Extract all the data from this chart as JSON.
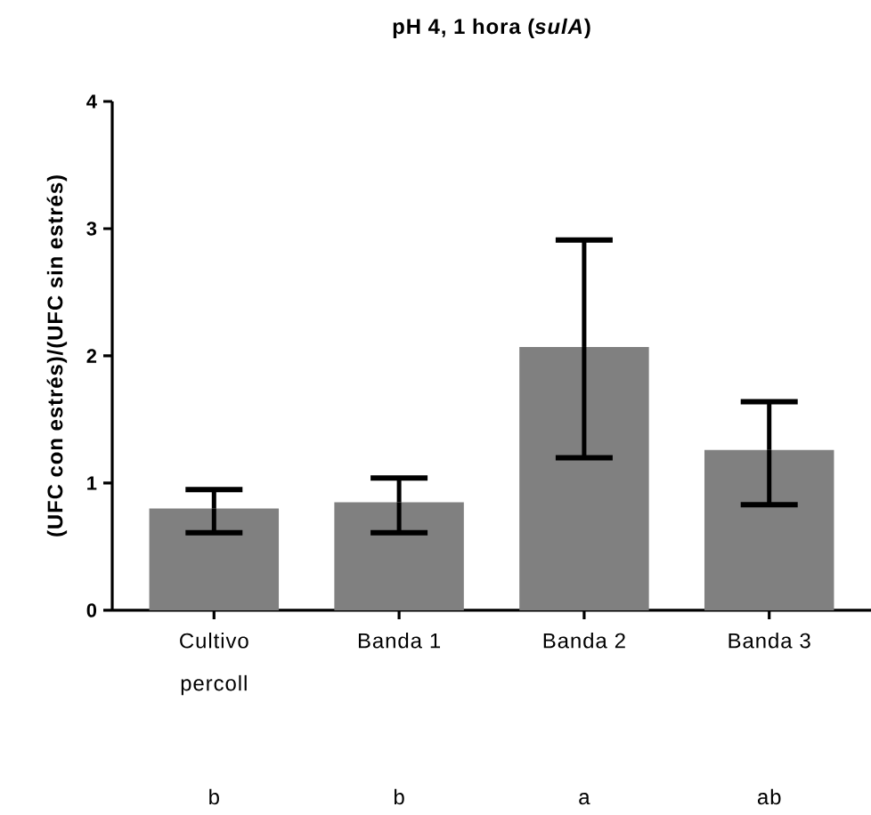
{
  "chart_data": {
    "type": "bar",
    "title": "pH 4, 1 hora (*sulA*)",
    "ylabel": "(UFC con estrés)/(UFC sin estrés)",
    "categories": [
      "Cultivo percoll",
      "Banda 1",
      "Banda 2",
      "Banda 3"
    ],
    "values": [
      0.8,
      0.85,
      2.07,
      1.26
    ],
    "color": "#808080",
    "errors": [
      [
        0.61,
        0.95
      ],
      [
        0.61,
        1.04
      ],
      [
        1.2,
        2.91
      ],
      [
        0.83,
        1.64
      ]
    ],
    "annotations": [
      "b",
      "b",
      "a",
      "ab"
    ],
    "ylim": [
      0,
      4
    ],
    "yticks": [
      0,
      1,
      2,
      3,
      4
    ],
    "grid": false
  }
}
